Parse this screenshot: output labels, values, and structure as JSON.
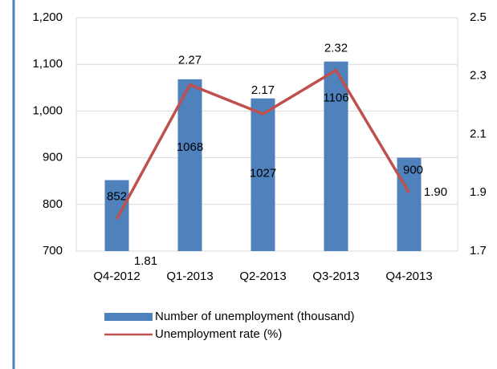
{
  "chart_data": {
    "type": "bar-line",
    "categories": [
      "Q4-2012",
      "Q1-2013",
      "Q2-2013",
      "Q3-2013",
      "Q4-2013"
    ],
    "series": [
      {
        "name": "Number of unemployment (thousand)",
        "color": "#4f81bd",
        "kind": "bar",
        "values": [
          852,
          1068,
          1027,
          1106,
          900
        ]
      },
      {
        "name": "Unemployment rate (%)",
        "color": "#c0504d",
        "kind": "line",
        "axis": "y2",
        "values": [
          1.81,
          2.27,
          2.17,
          2.32,
          1.9
        ],
        "value_labels": [
          "1.81",
          "2.27",
          "2.17",
          "2.32",
          "1.90"
        ]
      }
    ],
    "ylim": [
      700,
      1200
    ],
    "yticks": [
      700,
      800,
      900,
      {
        "value": 1000,
        "label": "1,000"
      },
      {
        "value": 1100,
        "label": "1,100"
      },
      {
        "value": 1200,
        "label": "1,200"
      }
    ],
    "y2lim": [
      1.7,
      2.5
    ],
    "y2ticks": [
      1.7,
      1.9,
      2.1,
      2.3,
      2.5
    ],
    "grid": true,
    "legend": "bottom"
  }
}
